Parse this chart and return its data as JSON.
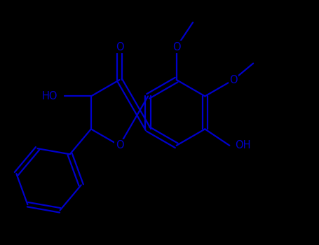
{
  "background_color": "#000000",
  "bond_color": "#0000CC",
  "line_width": 1.6,
  "font_size": 10.5,
  "figsize": [
    4.55,
    3.5
  ],
  "dpi": 100,
  "xlim": [
    -4.5,
    5.2
  ],
  "ylim": [
    -3.8,
    3.2
  ]
}
